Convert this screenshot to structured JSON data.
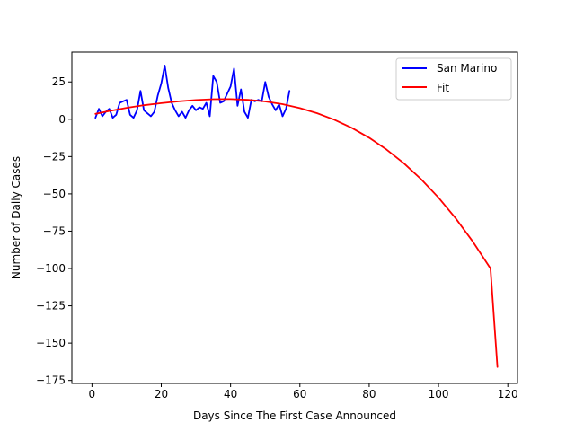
{
  "chart_data": {
    "type": "line",
    "xlabel": "Days Since The First Case Announced",
    "ylabel": "Number of Daily Cases",
    "xlim": [
      -5.8,
      122.8
    ],
    "ylim": [
      -177,
      45
    ],
    "xticks": [
      0,
      20,
      40,
      60,
      80,
      100,
      120
    ],
    "yticks": [
      -175,
      -150,
      -125,
      -100,
      -75,
      -50,
      -25,
      0,
      25
    ],
    "grid": false,
    "legend_position": "top-right",
    "series": [
      {
        "name": "San Marino",
        "color": "#0000ff",
        "x": [
          1,
          2,
          3,
          4,
          5,
          6,
          7,
          8,
          9,
          10,
          11,
          12,
          13,
          14,
          15,
          16,
          17,
          18,
          19,
          20,
          21,
          22,
          23,
          24,
          25,
          26,
          27,
          28,
          29,
          30,
          31,
          32,
          33,
          34,
          35,
          36,
          37,
          38,
          39,
          40,
          41,
          42,
          43,
          44,
          45,
          46,
          47,
          48,
          49,
          50,
          51,
          52,
          53,
          54,
          55,
          56,
          57
        ],
        "values": [
          1,
          7,
          2,
          5,
          7,
          1,
          3,
          11,
          12,
          13,
          3,
          1,
          6,
          19,
          6,
          4,
          2,
          5,
          16,
          24,
          36,
          21,
          11,
          6,
          2,
          5,
          1,
          6,
          9,
          6,
          8,
          7,
          11,
          2,
          29,
          25,
          11,
          12,
          17,
          22,
          34,
          9,
          20,
          5,
          1,
          13,
          12,
          13,
          12,
          25,
          15,
          10,
          6,
          10,
          2,
          7,
          19
        ]
      },
      {
        "name": "Fit",
        "color": "#ff0000",
        "x": [
          1,
          5,
          10,
          15,
          20,
          25,
          30,
          35,
          40,
          45,
          50,
          55,
          60,
          65,
          70,
          75,
          80,
          85,
          90,
          95,
          100,
          105,
          110,
          115,
          117
        ],
        "values": [
          3.6,
          5.5,
          7.6,
          9.4,
          10.8,
          12.0,
          12.9,
          13.4,
          13.5,
          13.0,
          11.9,
          10.1,
          7.5,
          4.0,
          -0.4,
          -5.8,
          -12.4,
          -20.3,
          -29.5,
          -40.2,
          -52.5,
          -66.5,
          -82.3,
          -100.0,
          -166
        ]
      }
    ]
  }
}
